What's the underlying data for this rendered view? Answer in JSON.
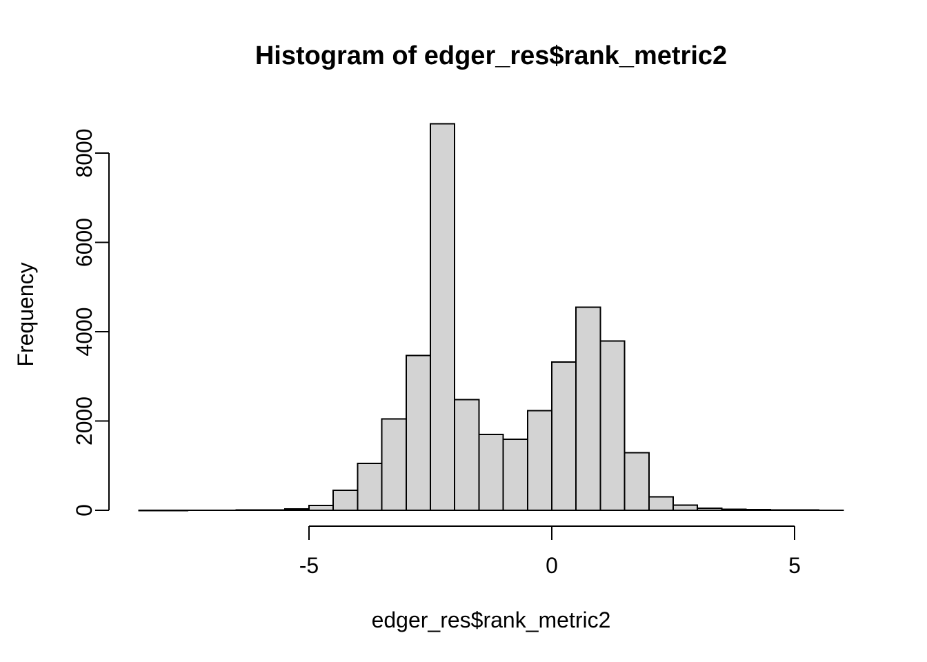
{
  "page": {
    "background": "#ffffff"
  },
  "chart_data": {
    "type": "bar",
    "subtype": "histogram",
    "title": "Histogram of edger_res$rank_metric2",
    "xlabel": "edger_res$rank_metric2",
    "ylabel": "Frequency",
    "bin_width": 0.5,
    "bin_edges": [
      -8.5,
      -8.0,
      -7.5,
      -7.0,
      -6.5,
      -6.0,
      -5.5,
      -5.0,
      -4.5,
      -4.0,
      -3.5,
      -3.0,
      -2.5,
      -2.0,
      -1.5,
      -1.0,
      -0.5,
      0.0,
      0.5,
      1.0,
      1.5,
      2.0,
      2.5,
      3.0,
      3.5,
      4.0,
      4.5,
      5.0,
      5.5,
      6.0
    ],
    "counts": [
      2,
      2,
      3,
      3,
      5,
      10,
      30,
      110,
      450,
      1050,
      2050,
      3470,
      8660,
      2480,
      1700,
      1590,
      2230,
      3320,
      4550,
      3790,
      1290,
      300,
      115,
      50,
      25,
      12,
      8,
      5,
      3
    ],
    "x_ticks": [
      -5,
      0,
      5
    ],
    "x_tick_labels": [
      "-5",
      "0",
      "5"
    ],
    "y_ticks": [
      0,
      2000,
      4000,
      6000,
      8000
    ],
    "y_tick_labels": [
      "0",
      "2000",
      "4000",
      "6000",
      "8000"
    ],
    "xlim": [
      -8.5,
      6.0
    ],
    "ylim": [
      0,
      8700
    ],
    "grid": false,
    "legend": false,
    "colors": {
      "bar_fill": "#d3d3d3",
      "bar_stroke": "#000000",
      "axis": "#000000",
      "text": "#000000",
      "background": "#ffffff"
    }
  }
}
